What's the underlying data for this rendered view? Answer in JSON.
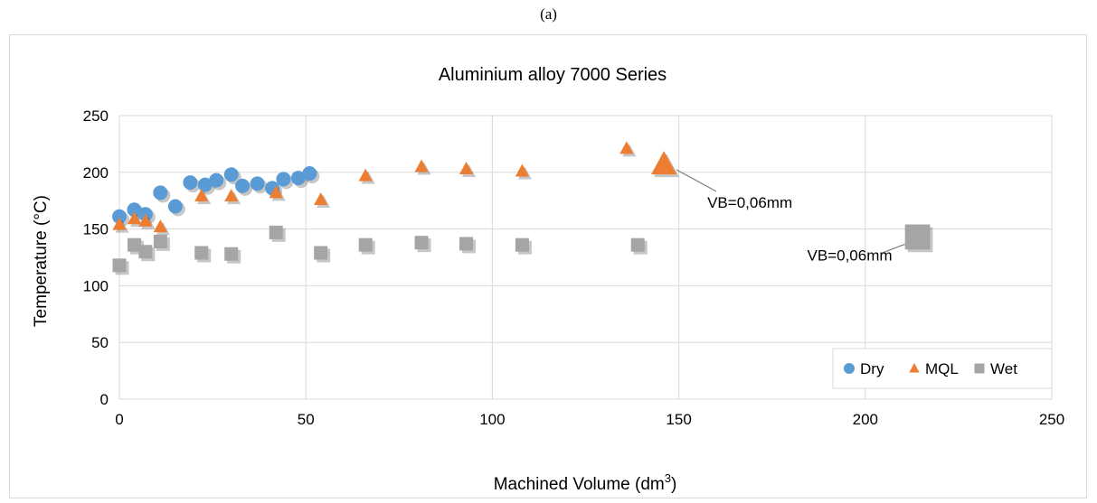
{
  "caption": "(a)",
  "chart_data": {
    "type": "scatter",
    "title": "Aluminium alloy 7000 Series",
    "xlabel": "Machined Volume (dm",
    "xlabel_sup": "3",
    "xlabel_end": ")",
    "ylabel": "Temperature (°C)",
    "xlim": [
      0,
      250
    ],
    "ylim": [
      0,
      250
    ],
    "xticks": [
      0,
      50,
      100,
      150,
      200,
      250
    ],
    "yticks": [
      0,
      50,
      100,
      150,
      200,
      250
    ],
    "grid": true,
    "legend_position": "bottom-right",
    "series": [
      {
        "name": "Dry",
        "marker": "circle",
        "color": "#5B9BD5",
        "points": [
          [
            0,
            161
          ],
          [
            4,
            167
          ],
          [
            7,
            163
          ],
          [
            11,
            182
          ],
          [
            15,
            170
          ],
          [
            19,
            191
          ],
          [
            23,
            189
          ],
          [
            26,
            193
          ],
          [
            30,
            198
          ],
          [
            33,
            188
          ],
          [
            37,
            190
          ],
          [
            41,
            186
          ],
          [
            44,
            194
          ],
          [
            48,
            195
          ],
          [
            51,
            199
          ]
        ]
      },
      {
        "name": "MQL",
        "marker": "triangle",
        "color": "#ED7D31",
        "points": [
          [
            0,
            154
          ],
          [
            4,
            159
          ],
          [
            7,
            157
          ],
          [
            11,
            152
          ],
          [
            22,
            179
          ],
          [
            30,
            179
          ],
          [
            42,
            182
          ],
          [
            54,
            176
          ],
          [
            66,
            197
          ],
          [
            81,
            205
          ],
          [
            93,
            203
          ],
          [
            108,
            201
          ],
          [
            136,
            221
          ],
          [
            146,
            207
          ]
        ]
      },
      {
        "name": "Wet",
        "marker": "square",
        "color": "#A5A5A5",
        "points": [
          [
            0,
            118
          ],
          [
            4,
            136
          ],
          [
            7,
            130
          ],
          [
            11,
            139
          ],
          [
            22,
            129
          ],
          [
            30,
            128
          ],
          [
            42,
            147
          ],
          [
            54,
            129
          ],
          [
            66,
            136
          ],
          [
            81,
            138
          ],
          [
            93,
            137
          ],
          [
            108,
            136
          ],
          [
            139,
            136
          ],
          [
            214,
            143
          ]
        ]
      }
    ],
    "annotations": [
      {
        "text": "VB=0,06mm",
        "series": "MQL",
        "x": 146,
        "y": 207
      },
      {
        "text": "VB=0,06mm",
        "series": "Wet",
        "x": 214,
        "y": 143
      }
    ]
  }
}
